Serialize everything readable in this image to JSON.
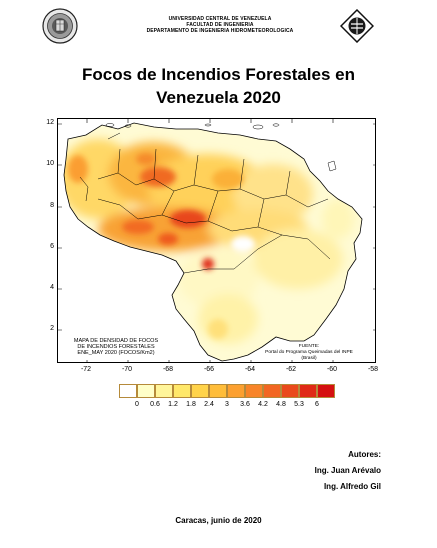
{
  "header": {
    "line1": "UNIVERSIDAD CENTRAL DE VENEZUELA",
    "line2": "FACULTAD DE INGENIERIA",
    "line3": "DEPARTAMENTO DE INGENIERIA HIDROMETEOROLOGICA"
  },
  "title": {
    "line1": "Focos de Incendios Forestales en",
    "line2": "Venezuela 2020"
  },
  "map": {
    "y_ticks": [
      "12",
      "10",
      "8",
      "6",
      "4",
      "2"
    ],
    "x_ticks": [
      "-72",
      "-70",
      "-68",
      "-66",
      "-64",
      "-62",
      "-60",
      "-58"
    ],
    "note_left": [
      "MAPA DE DENSIDAD DE FOCOS",
      "DE INCENDIOS FORESTALES",
      "ENE_MAY 2020 (FOCOS/Km2)"
    ],
    "note_right": [
      "FUENTE:",
      "Portal do Programa Queimadas del INPE",
      "(Brasil)"
    ]
  },
  "legend": {
    "labels": [
      "0",
      "0.6",
      "1.2",
      "1.8",
      "2.4",
      "3",
      "3.6",
      "4.2",
      "4.8",
      "5.3",
      "6"
    ],
    "colors": [
      "#ffffff",
      "#ffffc8",
      "#fff59a",
      "#ffe86a",
      "#ffd34a",
      "#ffbd3a",
      "#fca030",
      "#f88428",
      "#f26622",
      "#ea4a1c",
      "#e02a16",
      "#d51010"
    ]
  },
  "credits": {
    "heading": "Autores:",
    "author1": "Ing. Juan Arévalo",
    "author2": "Ing. Alfredo Gil"
  },
  "footer": "Caracas, junio de 2020"
}
